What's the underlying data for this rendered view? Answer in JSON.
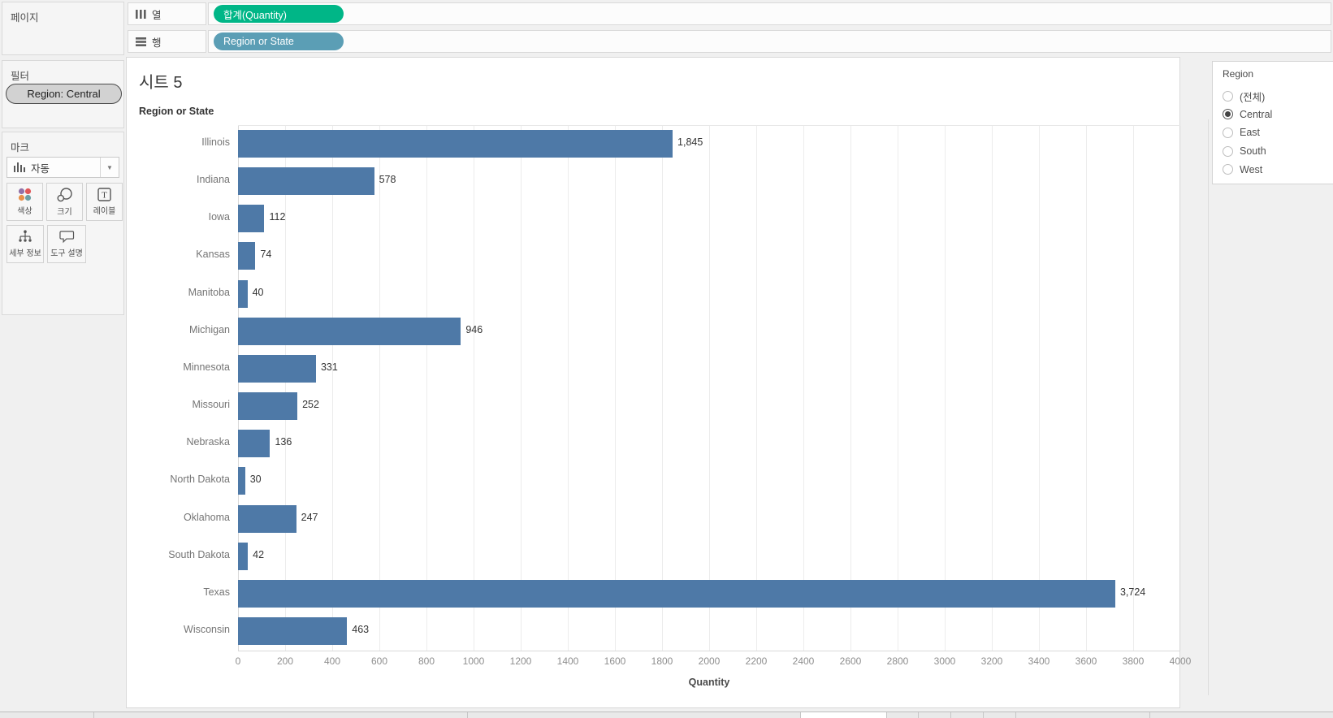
{
  "shelves": {
    "pages_label": "페이지",
    "columns_label": "열",
    "rows_label": "행",
    "columns_pill": "합계(Quantity)",
    "rows_pill": "Region or State",
    "columns_pill_color": "#00b687",
    "rows_pill_color": "#5b9eb5"
  },
  "filters": {
    "label": "필터",
    "pill": "Region: Central"
  },
  "marks": {
    "label": "마크",
    "mark_type": "자동",
    "buttons": [
      {
        "label": "색상",
        "icon": "color-icon"
      },
      {
        "label": "크기",
        "icon": "size-icon"
      },
      {
        "label": "레이블",
        "icon": "label-icon"
      },
      {
        "label": "세부 정보",
        "icon": "detail-icon"
      },
      {
        "label": "도구 설명",
        "icon": "tooltip-icon"
      }
    ],
    "color_icon_dots": [
      "#9272a8",
      "#e05759",
      "#e8914a",
      "#6d9fa5"
    ]
  },
  "sheet": {
    "title": "시트 5"
  },
  "chart_data": {
    "type": "bar",
    "orientation": "horizontal",
    "title": "시트 5",
    "row_header": "Region or State",
    "categories": [
      "Illinois",
      "Indiana",
      "Iowa",
      "Kansas",
      "Manitoba",
      "Michigan",
      "Minnesota",
      "Missouri",
      "Nebraska",
      "North Dakota",
      "Oklahoma",
      "South Dakota",
      "Texas",
      "Wisconsin"
    ],
    "values": [
      1845,
      578,
      112,
      74,
      40,
      946,
      331,
      252,
      136,
      30,
      247,
      42,
      3724,
      463
    ],
    "value_labels": [
      "1,845",
      "578",
      "112",
      "74",
      "40",
      "946",
      "331",
      "252",
      "136",
      "30",
      "247",
      "42",
      "3,724",
      "463"
    ],
    "xlabel": "Quantity",
    "xlim": [
      0,
      4000
    ],
    "x_ticks": [
      0,
      200,
      400,
      600,
      800,
      1000,
      1200,
      1400,
      1600,
      1800,
      2000,
      2200,
      2400,
      2600,
      2800,
      3000,
      3200,
      3400,
      3600,
      3800,
      4000
    ],
    "bar_color": "#4e79a7",
    "grid": true,
    "legend_position": "right"
  },
  "legend": {
    "title": "Region",
    "options": [
      {
        "label": "(전체)",
        "selected": false
      },
      {
        "label": "Central",
        "selected": true
      },
      {
        "label": "East",
        "selected": false
      },
      {
        "label": "South",
        "selected": false
      },
      {
        "label": "West",
        "selected": false
      }
    ]
  }
}
